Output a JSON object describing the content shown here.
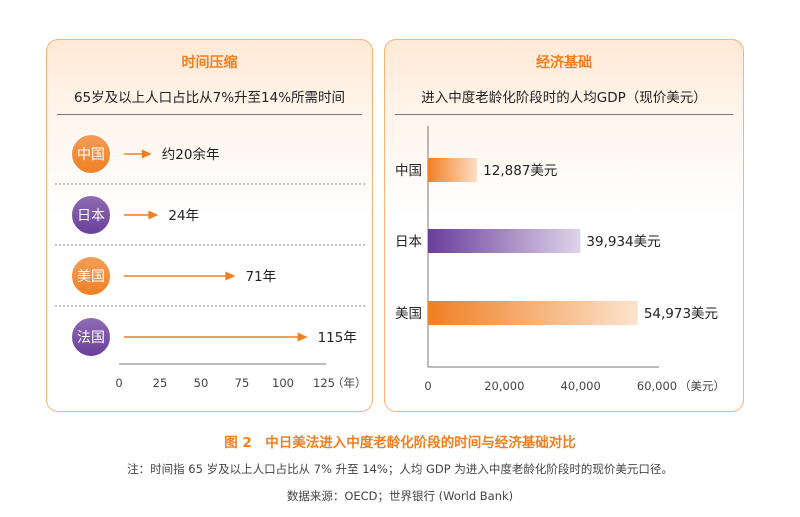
{
  "figure": {
    "caption": "图 2　中日美法进入中度老龄化阶段的时间与经济基础对比",
    "note": "注：时间指 65 岁及以上人口占比从 7% 升至 14%；人均 GDP 为进入中度老龄化阶段时的现价美元口径。",
    "source": "数据来源：OECD；世界银行 (World Bank)"
  },
  "colors": {
    "orange": "#f07f22",
    "purple": "#6a3d9a",
    "panel_border": "#f3b57c"
  },
  "chart_data": [
    {
      "type": "bar",
      "orientation": "horizontal",
      "title": "时间压缩",
      "subtitle": "65岁及以上人口占比从7%升至14%所需时间",
      "categories": [
        "中国",
        "日本",
        "美国",
        "法国"
      ],
      "values": [
        20,
        24,
        71,
        115
      ],
      "value_labels": [
        "约20余年",
        "24年",
        "71年",
        "115年"
      ],
      "category_colors": [
        "#f07f22",
        "#6a3d9a",
        "#f07f22",
        "#6a3d9a"
      ],
      "xlim": [
        0,
        125
      ],
      "xticks": [
        "0",
        "25",
        "50",
        "75",
        "100",
        "125"
      ],
      "xunit": "（年）"
    },
    {
      "type": "bar",
      "orientation": "horizontal",
      "title": "经济基础",
      "subtitle": "进入中度老龄化阶段时的人均GDP（现价美元）",
      "categories": [
        "中国",
        "日本",
        "美国"
      ],
      "values": [
        12887,
        39934,
        54973
      ],
      "value_labels": [
        "12,887美元",
        "39,934美元",
        "54,973美元"
      ],
      "category_colors": [
        "#f07f22",
        "#6a3d9a",
        "#f07f22"
      ],
      "xlim": [
        0,
        60000
      ],
      "xticks": [
        "0",
        "20,000",
        "40,000",
        "60,000"
      ],
      "xunit": "（美元）"
    }
  ]
}
